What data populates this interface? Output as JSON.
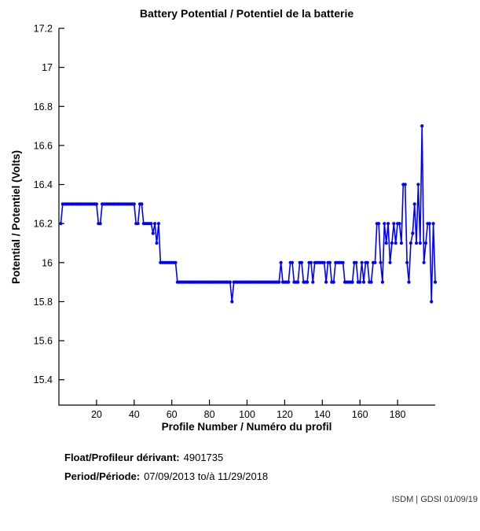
{
  "page": {
    "background": "#FFFFFF"
  },
  "chart_data": {
    "type": "line",
    "title": "Battery Potential / Potentiel de la batterie",
    "xlabel": "Profile Number / Numéro du profil",
    "ylabel": "Potential / Potentiel (Volts)",
    "xlim": [
      0,
      200
    ],
    "ylim": [
      15.27,
      17.2
    ],
    "xticks": [
      20,
      40,
      60,
      80,
      100,
      120,
      140,
      160,
      180
    ],
    "yticks": [
      15.4,
      15.6,
      15.8,
      16,
      16.2,
      16.4,
      16.6,
      16.8,
      17,
      17.2
    ],
    "ytick_labels": [
      "15.4",
      "15.6",
      "15.8",
      "16",
      "16.2",
      "16.4",
      "16.6",
      "16.8",
      "17",
      "17.2"
    ],
    "grid": false,
    "legend": "none",
    "line_color": "#0000FF",
    "marker": "dot",
    "series": [
      {
        "name": "Battery Potential (Volts) vs Profile Number",
        "encoding": "runs = [first_profile, last_profile, volts]",
        "runs": [
          [
            1,
            1,
            16.2
          ],
          [
            2,
            20,
            16.3
          ],
          [
            21,
            22,
            16.2
          ],
          [
            23,
            40,
            16.3
          ],
          [
            41,
            42,
            16.2
          ],
          [
            43,
            44,
            16.3
          ],
          [
            45,
            49,
            16.2
          ],
          [
            50,
            50,
            16.15
          ],
          [
            51,
            51,
            16.2
          ],
          [
            52,
            52,
            16.1
          ],
          [
            53,
            53,
            16.2
          ],
          [
            54,
            62,
            16.0
          ],
          [
            63,
            91,
            15.9
          ],
          [
            92,
            92,
            15.8
          ],
          [
            93,
            117,
            15.9
          ],
          [
            118,
            118,
            16.0
          ],
          [
            119,
            122,
            15.9
          ],
          [
            123,
            124,
            16.0
          ],
          [
            125,
            127,
            15.9
          ],
          [
            128,
            129,
            16.0
          ],
          [
            130,
            132,
            15.9
          ],
          [
            133,
            134,
            16.0
          ],
          [
            135,
            135,
            15.9
          ],
          [
            136,
            141,
            16.0
          ],
          [
            142,
            142,
            15.9
          ],
          [
            143,
            144,
            16.0
          ],
          [
            145,
            146,
            15.9
          ],
          [
            147,
            151,
            16.0
          ],
          [
            152,
            156,
            15.9
          ],
          [
            157,
            158,
            16.0
          ],
          [
            159,
            160,
            15.9
          ],
          [
            161,
            161,
            16.0
          ],
          [
            162,
            162,
            15.9
          ],
          [
            163,
            164,
            16.0
          ],
          [
            165,
            166,
            15.9
          ],
          [
            167,
            168,
            16.0
          ],
          [
            169,
            170,
            16.2
          ],
          [
            171,
            171,
            16.0
          ],
          [
            172,
            172,
            15.9
          ],
          [
            173,
            173,
            16.2
          ],
          [
            174,
            174,
            16.1
          ],
          [
            175,
            175,
            16.2
          ],
          [
            176,
            176,
            16.0
          ],
          [
            177,
            177,
            16.1
          ],
          [
            178,
            178,
            16.2
          ],
          [
            179,
            179,
            16.1
          ],
          [
            180,
            181,
            16.2
          ],
          [
            182,
            182,
            16.1
          ],
          [
            183,
            184,
            16.4
          ],
          [
            185,
            185,
            16.0
          ],
          [
            186,
            186,
            15.9
          ],
          [
            187,
            187,
            16.1
          ],
          [
            188,
            188,
            16.15
          ],
          [
            189,
            189,
            16.3
          ],
          [
            190,
            190,
            16.1
          ],
          [
            191,
            191,
            16.4
          ],
          [
            192,
            192,
            16.1
          ],
          [
            193,
            193,
            16.7
          ],
          [
            194,
            194,
            16.0
          ],
          [
            195,
            195,
            16.1
          ],
          [
            196,
            197,
            16.2
          ],
          [
            198,
            198,
            15.8
          ],
          [
            199,
            199,
            16.2
          ],
          [
            200,
            200,
            15.9
          ]
        ]
      }
    ]
  },
  "annotations": {
    "float_label": "Float/Profileur dérivant:",
    "float_value": "4901735",
    "period_label": "Period/Période:",
    "period_value": "07/09/2013 to/à  11/29/2018",
    "credit": "ISDM | GDSI 01/09/19"
  }
}
